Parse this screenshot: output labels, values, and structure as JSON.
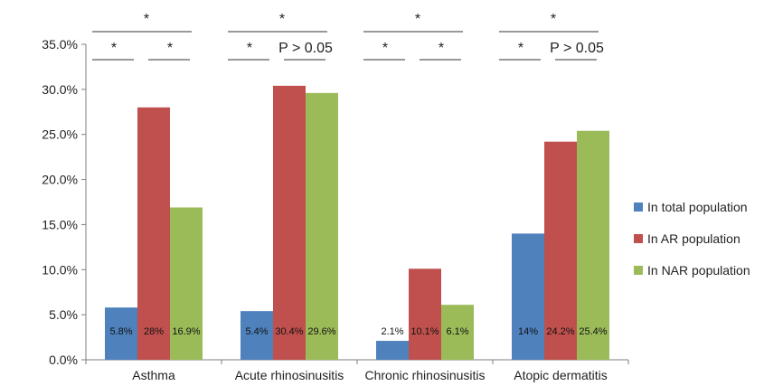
{
  "chart_data": {
    "type": "bar",
    "categories": [
      "Asthma",
      "Acute rhinosinusitis",
      "Chronic rhinosinusitis",
      "Atopic dermatitis"
    ],
    "series": [
      {
        "name": "In total population",
        "color": "#4F81BD",
        "values": [
          5.8,
          5.4,
          2.1,
          14.0
        ],
        "labels": [
          "5.8%",
          "5.4%",
          "2.1%",
          "14%"
        ]
      },
      {
        "name": "In AR population",
        "color": "#C0504D",
        "values": [
          28.0,
          30.4,
          10.1,
          24.2
        ],
        "labels": [
          "28%",
          "30.4%",
          "10.1%",
          "24.2%"
        ]
      },
      {
        "name": "In NAR population",
        "color": "#9BBB59",
        "values": [
          16.9,
          29.6,
          6.1,
          25.4
        ],
        "labels": [
          "16.9%",
          "29.6%",
          "6.1%",
          "25.4%"
        ]
      }
    ],
    "ylim": [
      0,
      35
    ],
    "yticks": [
      "0.0%",
      "5.0%",
      "10.0%",
      "15.0%",
      "20.0%",
      "25.0%",
      "30.0%",
      "35.0%"
    ],
    "grid": false,
    "legend_position": "right",
    "significance": [
      {
        "top": "*",
        "left": "*",
        "right": "*"
      },
      {
        "top": "*",
        "left": "*",
        "right": "P > 0.05"
      },
      {
        "top": "*",
        "left": "*",
        "right": "*"
      },
      {
        "top": "*",
        "left": "*",
        "right": "P > 0.05"
      }
    ]
  }
}
